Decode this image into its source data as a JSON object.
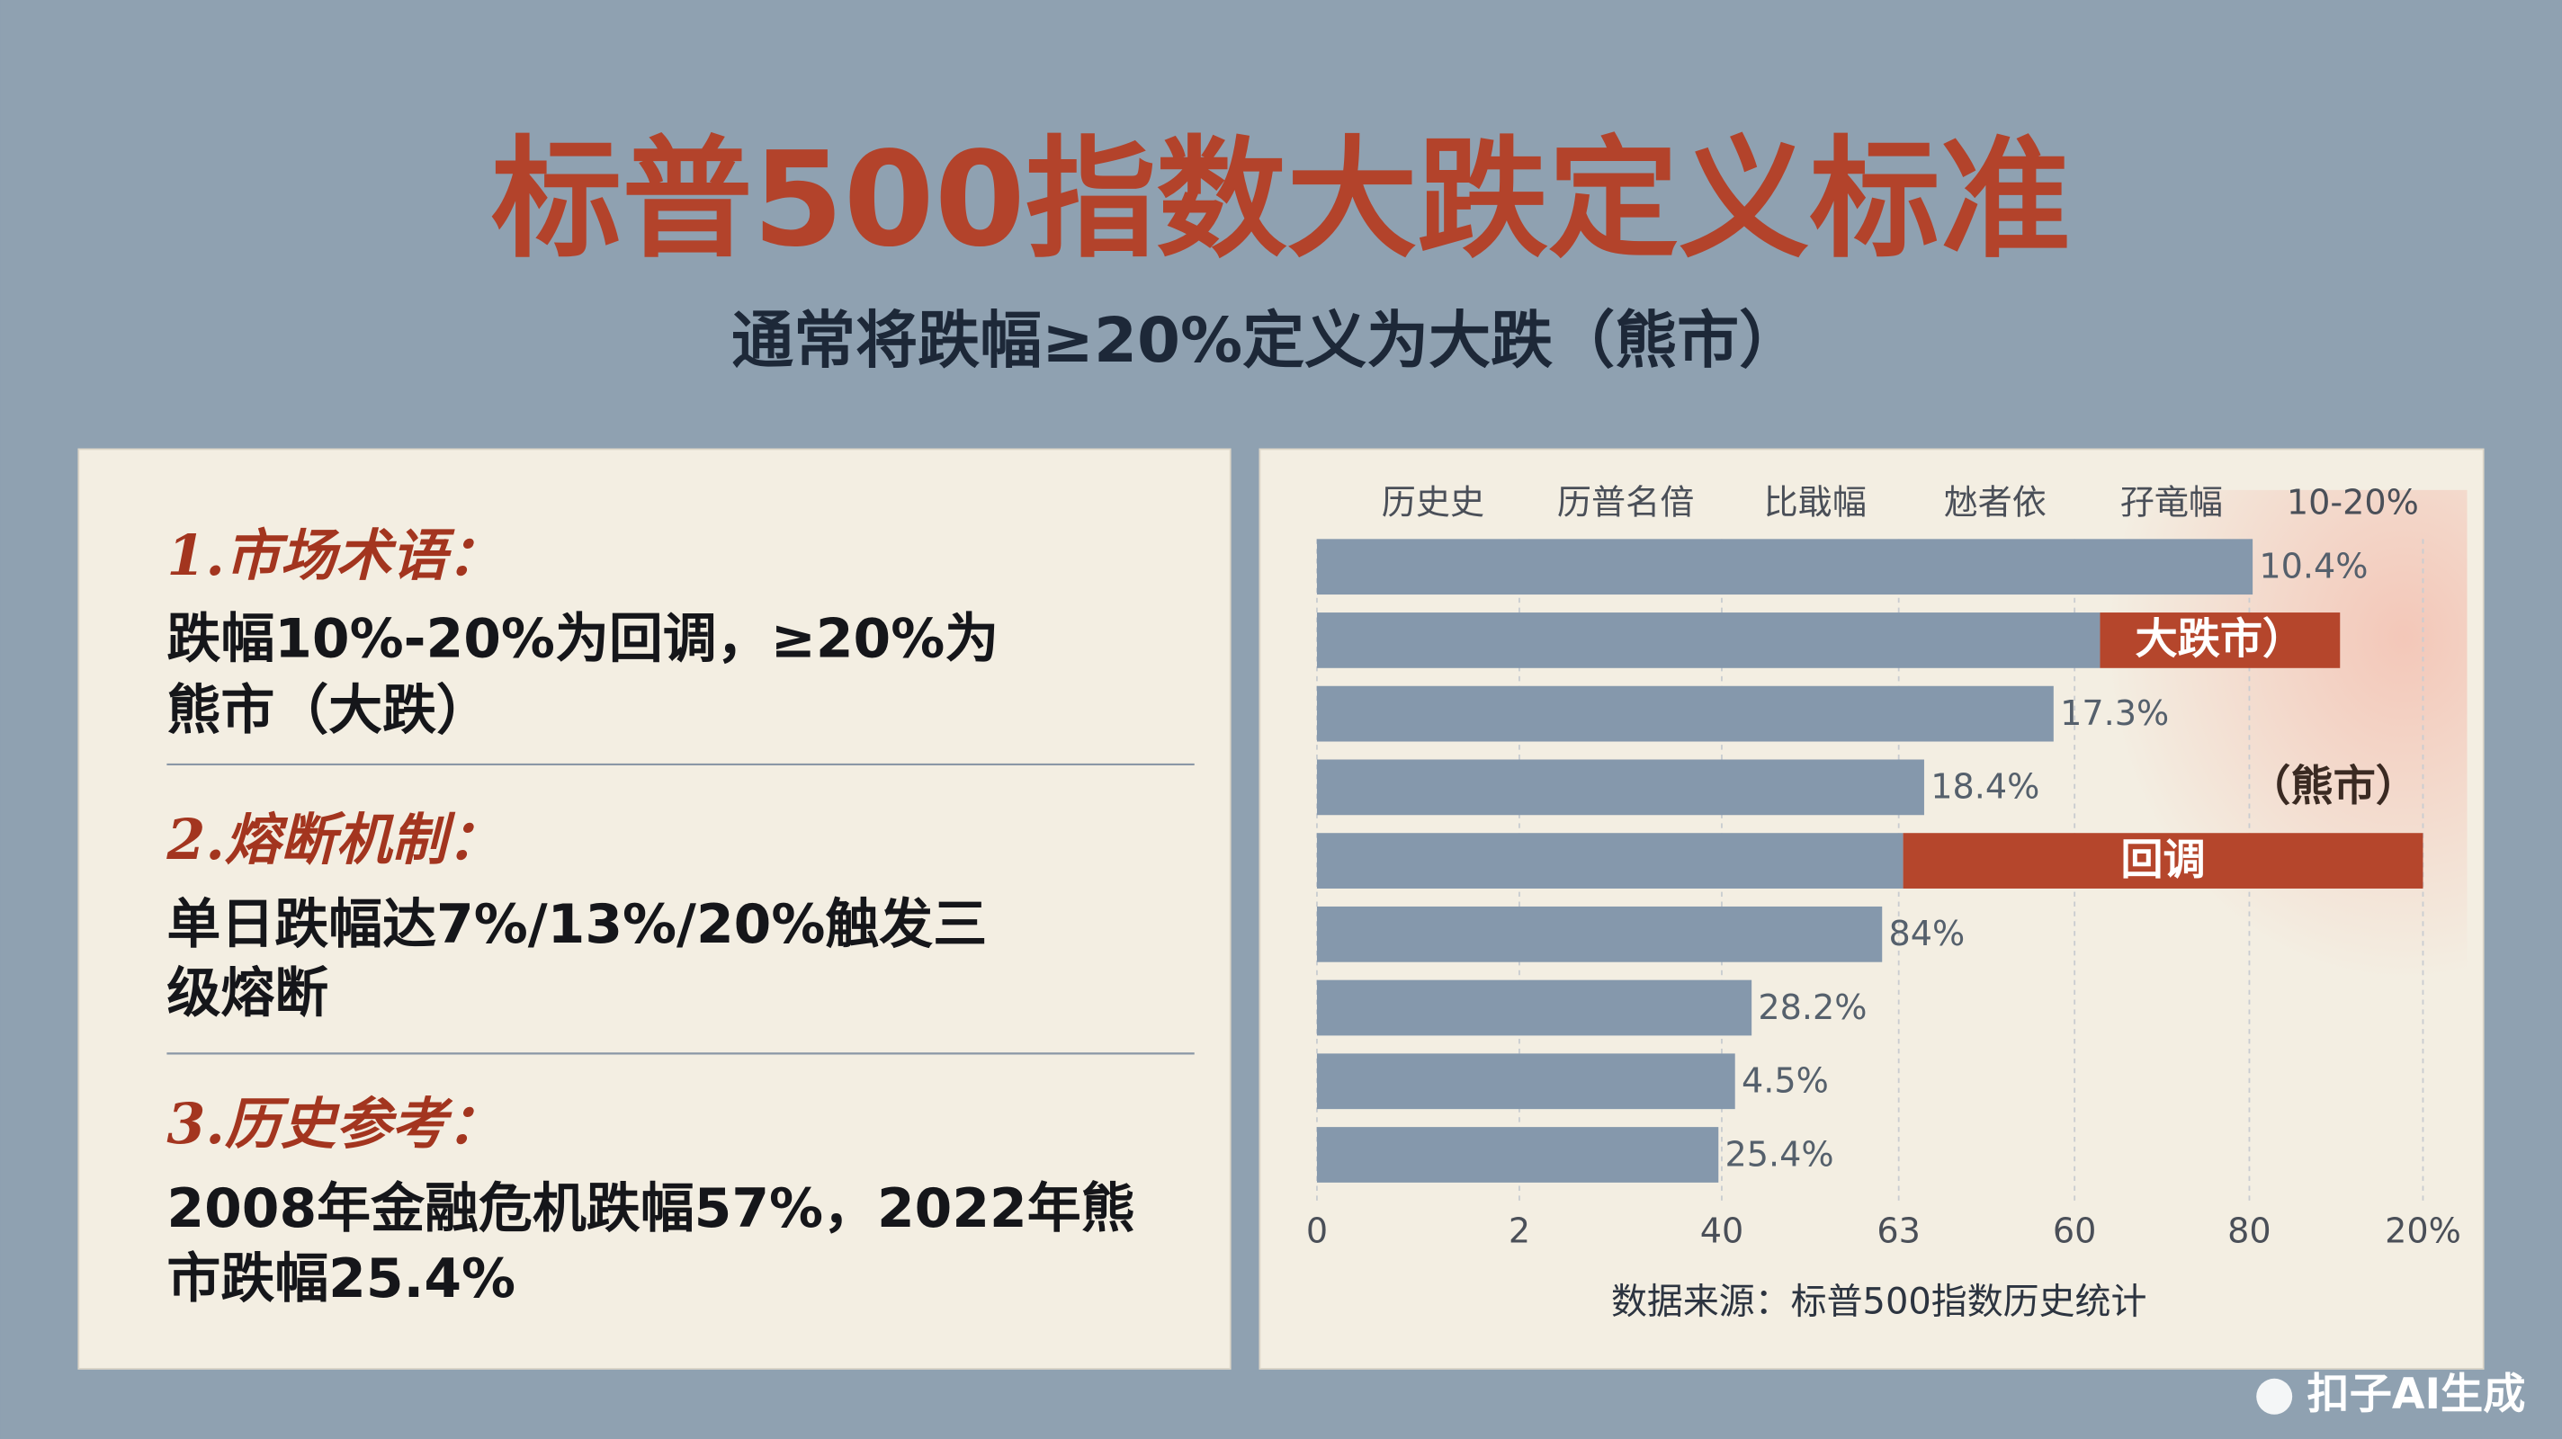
{
  "header": {
    "title": "标普500指数大跌定义标准",
    "subtitle": "通常将跌幅≥20%定义为大跌（熊市）"
  },
  "sections": [
    {
      "heading": "1.市场术语：",
      "body": [
        "跌幅10%-20%为回调，≥20%为",
        "熊市（大跌）"
      ]
    },
    {
      "heading": "2.熔断机制：",
      "body": [
        "单日跌幅达7%/13%/20%触发三",
        "级熔断"
      ]
    },
    {
      "heading": "3.历史参考：",
      "body": [
        "2008年金融危机跌幅57%，2022年熊",
        "市跌幅25.4%"
      ]
    }
  ],
  "chart_data": {
    "type": "bar",
    "orientation": "horizontal",
    "column_headers": [
      "历史史",
      "历普名偣",
      "比戢幅",
      "沊者依",
      "孖竜幅",
      "10-20%"
    ],
    "values": [
      84.6,
      70.8,
      66.6,
      54.9,
      53,
      51.1,
      39.3,
      37.8,
      36.3
    ],
    "bar_labels": [
      "10.4%",
      null,
      "17.3%",
      "18.4%",
      null,
      "84%",
      "28.2%",
      "4.5%",
      "25.4%"
    ],
    "highlight_labels": [
      null,
      "大跌市）",
      null,
      "（熊市）",
      "回调",
      null,
      null,
      null,
      null
    ],
    "highlight_ends": [
      null,
      92.5,
      null,
      null,
      100,
      null,
      null,
      null,
      null
    ],
    "color": "#8598ac",
    "highlight_color": "#b5462c",
    "xlim": [
      0,
      100
    ],
    "xticks": [
      0,
      {
        "value": 18.3,
        "label": "2"
      },
      {
        "value": 36.6,
        "label": "40"
      },
      {
        "value": 52.6,
        "label": "63"
      },
      {
        "value": 68.5,
        "label": "60"
      },
      {
        "value": 84.3,
        "label": "80"
      },
      {
        "value": 100,
        "label": "20%"
      }
    ],
    "grid": true,
    "source": "数据来源：标普500指数历史统计"
  },
  "watermark": "扣子AI生成"
}
